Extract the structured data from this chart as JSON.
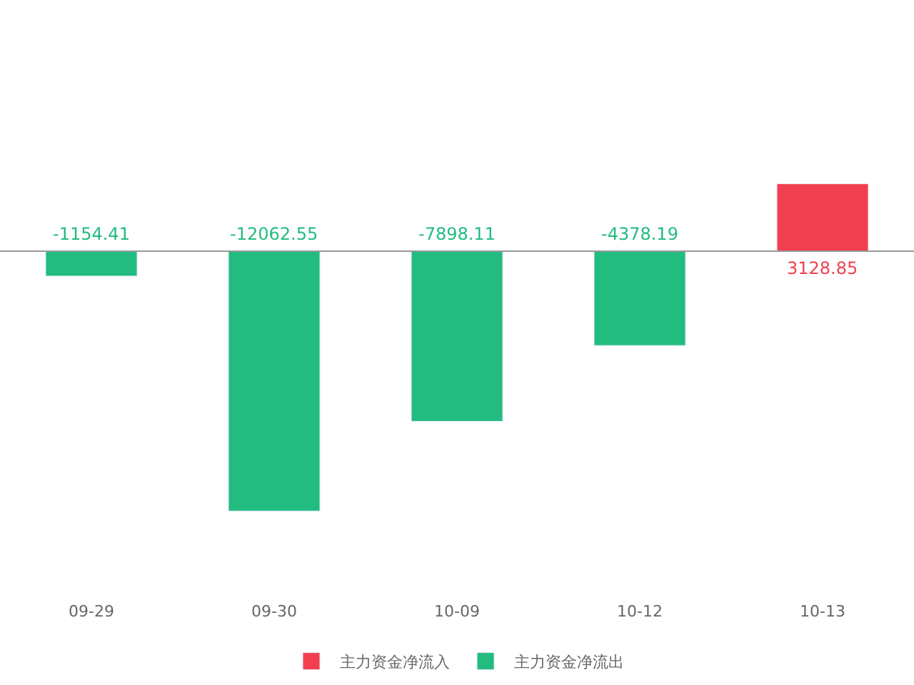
{
  "chart_data": {
    "type": "bar",
    "categories": [
      "09-29",
      "09-30",
      "10-09",
      "10-12",
      "10-13"
    ],
    "series": [
      {
        "name": "主力资金净流入",
        "color": "#f23f4f",
        "values": [
          null,
          null,
          null,
          null,
          3128.85
        ]
      },
      {
        "name": "主力资金净流出",
        "color": "#22bb80",
        "values": [
          -1154.41,
          -12062.55,
          -7898.11,
          -4378.19,
          null
        ]
      }
    ],
    "data_labels": true,
    "legend": "bottom"
  }
}
